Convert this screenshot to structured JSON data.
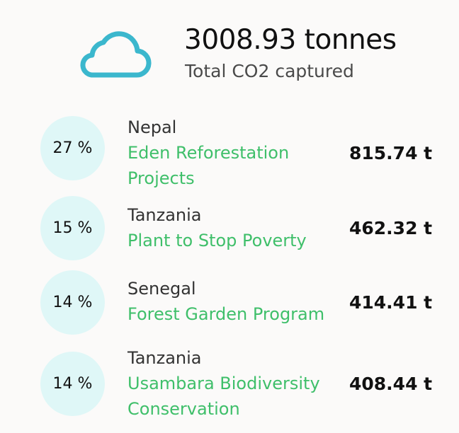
{
  "summary": {
    "icon": "cloud-icon",
    "total_value": "3008.93 tonnes",
    "total_label": "Total CO2 captured"
  },
  "colors": {
    "background": "#fbfaf9",
    "badge_fill": "#dff7f7",
    "project_link": "#3fbf6a",
    "cloud_stroke": "#3bb7cd"
  },
  "projects": [
    {
      "percent": "27 %",
      "country": "Nepal",
      "name": "Eden Reforestation Projects",
      "amount": "815.74 t"
    },
    {
      "percent": "15 %",
      "country": "Tanzania",
      "name": "Plant to Stop Poverty",
      "amount": "462.32 t"
    },
    {
      "percent": "14 %",
      "country": "Senegal",
      "name": "Forest Garden Program",
      "amount": "414.41 t"
    },
    {
      "percent": "14 %",
      "country": "Tanzania",
      "name": "Usambara Biodiversity Conservation",
      "amount": "408.44 t"
    }
  ]
}
